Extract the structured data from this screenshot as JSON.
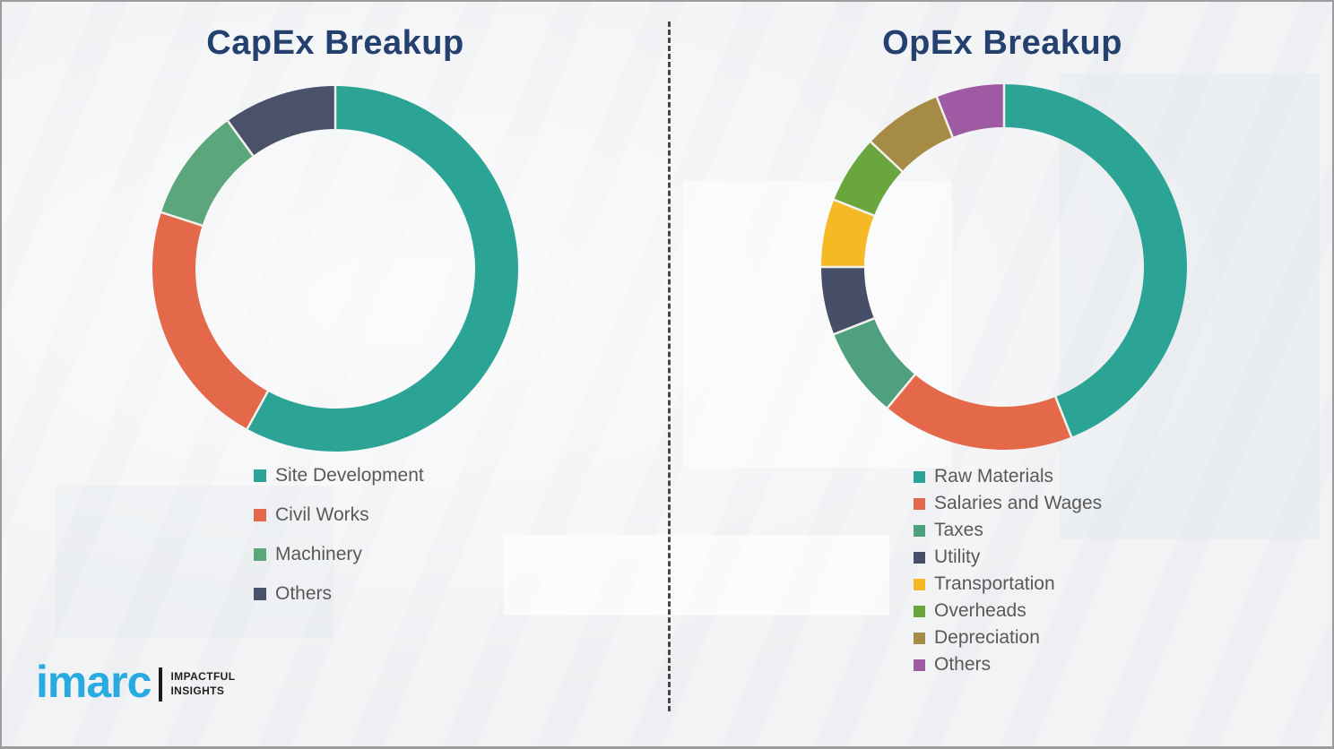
{
  "colors": {
    "background": "#F2F3F5",
    "frame_border": "#9C9C9C",
    "title_text": "#24406E",
    "legend_text": "#595959",
    "divider": "#474747",
    "segment_gap": "#F2F1EC",
    "brand_blue": "#29ABE2",
    "logo_text": "#231F20"
  },
  "chart_data": [
    {
      "id": "capex",
      "type": "pie",
      "subtype": "donut",
      "title": "CapEx Breakup",
      "labels": [
        "Site Development",
        "Civil Works",
        "Machinery",
        "Others"
      ],
      "values": [
        58,
        22,
        10,
        10
      ],
      "colors": [
        "#2CA495",
        "#E4684A",
        "#5CA67C",
        "#4A5269"
      ],
      "value_note": "percent of total, estimated from arc angles (no numeric labels shown)",
      "start_angle_deg": 0,
      "direction": "clockwise",
      "legend_position": "below-left"
    },
    {
      "id": "opex",
      "type": "pie",
      "subtype": "donut",
      "title": "OpEx Breakup",
      "labels": [
        "Raw Materials",
        "Salaries and Wages",
        "Taxes",
        "Utility",
        "Transportation",
        "Overheads",
        "Depreciation",
        "Others"
      ],
      "values": [
        44,
        17,
        8,
        6,
        6,
        6,
        7,
        6
      ],
      "colors": [
        "#2CA495",
        "#E4684A",
        "#4FA07E",
        "#474F68",
        "#F6B926",
        "#69A73E",
        "#A68B44",
        "#9E5BA4"
      ],
      "value_note": "percent of total, estimated from arc angles (no numeric labels shown)",
      "start_angle_deg": 0,
      "direction": "clockwise",
      "legend_position": "below-left"
    }
  ],
  "logo": {
    "wordmark": "imarc",
    "tagline_line1": "IMPACTFUL",
    "tagline_line2": "INSIGHTS"
  }
}
